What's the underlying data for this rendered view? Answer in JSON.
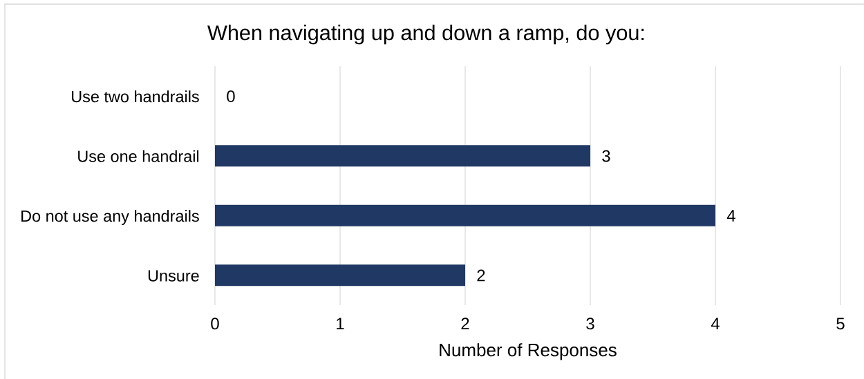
{
  "chart_data": {
    "type": "bar",
    "orientation": "horizontal",
    "title": "When navigating up and down a ramp, do you:",
    "categories": [
      "Use two handrails",
      "Use one handrail",
      "Do not use any handrails",
      "Unsure"
    ],
    "values": [
      0,
      3,
      4,
      2
    ],
    "color": "#203864",
    "xlabel": "Number of Responses",
    "xlim": [
      0,
      5
    ],
    "xticks": [
      0,
      1,
      2,
      3,
      4,
      5
    ],
    "grid": "x",
    "data_labels": true
  }
}
